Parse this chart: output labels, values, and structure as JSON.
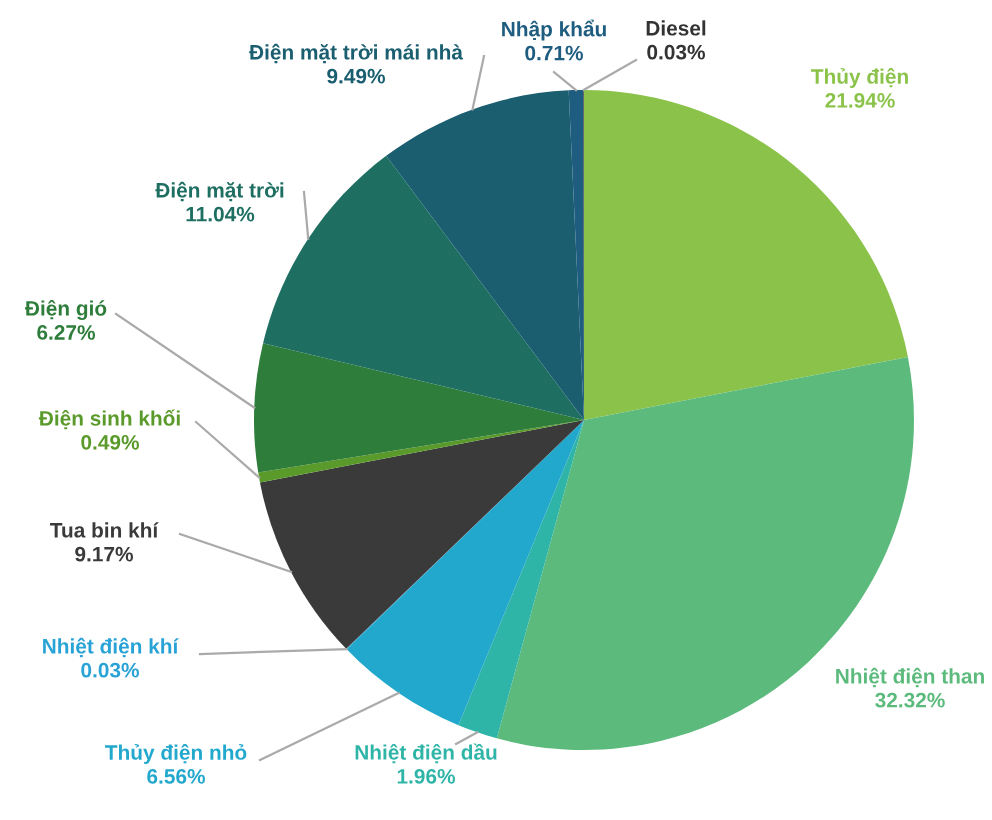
{
  "chart_data": {
    "type": "pie",
    "categories": [
      "Thủy điện",
      "Nhiệt điện than",
      "Nhiệt điện dầu",
      "Thủy điện nhỏ",
      "Nhiệt điện khí",
      "Tua bin khí",
      "Điện sinh khối",
      "Điện gió",
      "Điện mặt trời",
      "Điện mặt trời mái nhà",
      "Nhập khẩu",
      "Diesel"
    ],
    "values": [
      21.94,
      32.32,
      1.96,
      6.56,
      0.03,
      9.17,
      0.49,
      6.27,
      11.04,
      9.49,
      0.71,
      0.03
    ],
    "value_labels": [
      "21.94%",
      "32.32%",
      "1.96%",
      "6.56%",
      "0.03%",
      "9.17%",
      "0.49%",
      "6.27%",
      "11.04%",
      "9.49%",
      "0.71%",
      "0.03%"
    ],
    "colors": [
      "#8bc34a",
      "#5cbb7c",
      "#2fb5a8",
      "#22a8cc",
      "#29a3d6",
      "#3a3a3a",
      "#5a9a2a",
      "#2e7d3a",
      "#1e6f62",
      "#1a5e70",
      "#1f5d80",
      "#333333"
    ]
  }
}
